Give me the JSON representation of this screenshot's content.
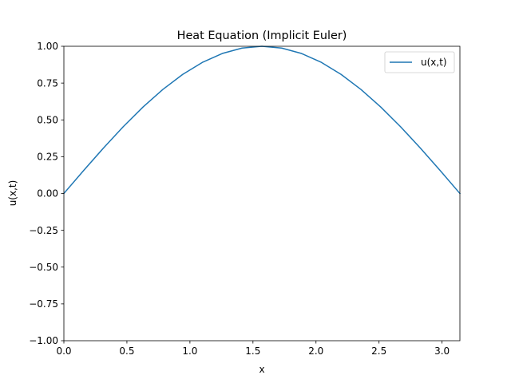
{
  "chart_data": {
    "type": "line",
    "title": "Heat Equation (Implicit Euler)",
    "xlabel": "x",
    "ylabel": "u(x,t)",
    "xlim": [
      0,
      3.14159
    ],
    "ylim": [
      -1.0,
      1.0
    ],
    "grid": false,
    "legend_position": "top-right",
    "xticks": [
      "0.0",
      "0.5",
      "1.0",
      "1.5",
      "2.0",
      "2.5",
      "3.0"
    ],
    "xtick_values": [
      0.0,
      0.5,
      1.0,
      1.5,
      2.0,
      2.5,
      3.0
    ],
    "yticks": [
      "−1.00",
      "−0.75",
      "−0.50",
      "−0.25",
      "0.00",
      "0.25",
      "0.50",
      "0.75",
      "1.00"
    ],
    "ytick_values": [
      -1.0,
      -0.75,
      -0.5,
      -0.25,
      0.0,
      0.25,
      0.5,
      0.75,
      1.0
    ],
    "series": [
      {
        "name": "u(x,t)",
        "color": "#1f77b4",
        "x": [
          0.0,
          0.1571,
          0.3142,
          0.4712,
          0.6283,
          0.7854,
          0.9425,
          1.0996,
          1.2566,
          1.4137,
          1.5708,
          1.7279,
          1.885,
          2.042,
          2.1991,
          2.3562,
          2.5133,
          2.6704,
          2.8274,
          2.9845,
          3.1416
        ],
        "y": [
          0.0,
          0.1564,
          0.309,
          0.454,
          0.5878,
          0.7071,
          0.809,
          0.891,
          0.9511,
          0.9877,
          1.0,
          0.9877,
          0.9511,
          0.891,
          0.809,
          0.7071,
          0.5878,
          0.454,
          0.309,
          0.1564,
          0.0
        ]
      }
    ]
  }
}
